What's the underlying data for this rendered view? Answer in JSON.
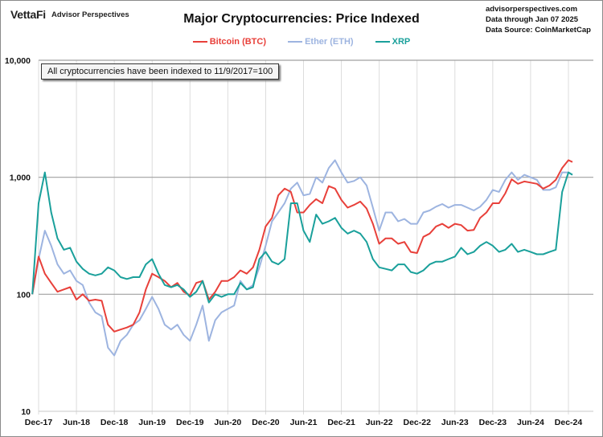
{
  "header": {
    "brand_logo": "VettaFi",
    "brand_sub": "Advisor Perspectives",
    "source_lines": [
      "advisorperspectives.com",
      "Data through Jan 07 2025",
      "Data Source: CoinMarketCap"
    ]
  },
  "annotation": "All cryptocurrencies have been indexed to 11/9/2017=100",
  "chart_data": {
    "type": "line",
    "title": "Major Cryptocurrencies:  Price Indexed",
    "xlabel": "",
    "ylabel": "",
    "yscale": "log",
    "ylim": [
      10,
      10000
    ],
    "y_ticks": [
      10,
      100,
      1000,
      10000
    ],
    "y_tick_labels": [
      "10",
      "100",
      "1,000",
      "10,000"
    ],
    "x_tick_labels": [
      "Dec-17",
      "Jun-18",
      "Dec-18",
      "Jun-19",
      "Dec-19",
      "Jun-20",
      "Dec-20",
      "Jun-21",
      "Dec-21",
      "Jun-22",
      "Dec-22",
      "Jun-23",
      "Dec-23",
      "Jun-24",
      "Dec-24"
    ],
    "grid": true,
    "legend_position": "top-center",
    "x": [
      "Nov-17",
      "Dec-17",
      "Jan-18",
      "Feb-18",
      "Mar-18",
      "Apr-18",
      "May-18",
      "Jun-18",
      "Jul-18",
      "Aug-18",
      "Sep-18",
      "Oct-18",
      "Nov-18",
      "Dec-18",
      "Jan-19",
      "Feb-19",
      "Mar-19",
      "Apr-19",
      "May-19",
      "Jun-19",
      "Jul-19",
      "Aug-19",
      "Sep-19",
      "Oct-19",
      "Nov-19",
      "Dec-19",
      "Jan-20",
      "Feb-20",
      "Mar-20",
      "Apr-20",
      "May-20",
      "Jun-20",
      "Jul-20",
      "Aug-20",
      "Sep-20",
      "Oct-20",
      "Nov-20",
      "Dec-20",
      "Jan-21",
      "Feb-21",
      "Mar-21",
      "Apr-21",
      "May-21",
      "Jun-21",
      "Jul-21",
      "Aug-21",
      "Sep-21",
      "Oct-21",
      "Nov-21",
      "Dec-21",
      "Jan-22",
      "Feb-22",
      "Mar-22",
      "Apr-22",
      "May-22",
      "Jun-22",
      "Jul-22",
      "Aug-22",
      "Sep-22",
      "Oct-22",
      "Nov-22",
      "Dec-22",
      "Jan-23",
      "Feb-23",
      "Mar-23",
      "Apr-23",
      "May-23",
      "Jun-23",
      "Jul-23",
      "Aug-23",
      "Sep-23",
      "Oct-23",
      "Nov-23",
      "Dec-23",
      "Jan-24",
      "Feb-24",
      "Mar-24",
      "Apr-24",
      "May-24",
      "Jun-24",
      "Jul-24",
      "Aug-24",
      "Sep-24",
      "Oct-24",
      "Nov-24",
      "Dec-24",
      "Jan-25"
    ],
    "series": [
      {
        "name": "Bitcoin (BTC)",
        "color": "#e8403a",
        "values": [
          100,
          210,
          150,
          125,
          105,
          110,
          115,
          90,
          100,
          88,
          90,
          88,
          55,
          48,
          50,
          52,
          55,
          70,
          110,
          150,
          140,
          130,
          115,
          125,
          105,
          98,
          125,
          130,
          90,
          105,
          130,
          130,
          140,
          160,
          150,
          170,
          240,
          380,
          450,
          700,
          800,
          750,
          500,
          500,
          580,
          650,
          600,
          840,
          800,
          640,
          550,
          580,
          620,
          540,
          400,
          270,
          300,
          300,
          270,
          280,
          230,
          225,
          310,
          330,
          380,
          400,
          370,
          400,
          390,
          350,
          355,
          450,
          500,
          600,
          600,
          730,
          960,
          880,
          920,
          900,
          880,
          800,
          850,
          950,
          1200,
          1400,
          1350
        ]
      },
      {
        "name": "Ether (ETH)",
        "color": "#9db4e0",
        "values": [
          100,
          200,
          350,
          260,
          180,
          150,
          160,
          130,
          120,
          85,
          70,
          65,
          35,
          30,
          40,
          45,
          55,
          60,
          75,
          95,
          75,
          55,
          50,
          55,
          45,
          40,
          55,
          80,
          40,
          60,
          70,
          75,
          80,
          130,
          110,
          120,
          170,
          260,
          420,
          500,
          600,
          800,
          900,
          700,
          720,
          1000,
          900,
          1200,
          1400,
          1100,
          900,
          930,
          1000,
          850,
          550,
          350,
          500,
          500,
          420,
          440,
          400,
          400,
          500,
          520,
          560,
          590,
          550,
          580,
          580,
          550,
          520,
          560,
          640,
          780,
          750,
          950,
          1100,
          950,
          1050,
          1000,
          950,
          780,
          780,
          820,
          1100,
          1100,
          1050
        ]
      },
      {
        "name": "XRP",
        "color": "#1aa09b",
        "values": [
          100,
          600,
          1100,
          500,
          300,
          240,
          250,
          190,
          165,
          150,
          145,
          150,
          170,
          160,
          140,
          135,
          140,
          140,
          180,
          200,
          150,
          120,
          115,
          120,
          110,
          95,
          105,
          130,
          85,
          100,
          95,
          100,
          100,
          125,
          110,
          115,
          200,
          230,
          190,
          180,
          200,
          600,
          600,
          350,
          280,
          480,
          400,
          420,
          450,
          370,
          330,
          350,
          330,
          280,
          200,
          170,
          165,
          160,
          180,
          180,
          155,
          150,
          160,
          180,
          190,
          190,
          200,
          210,
          250,
          220,
          230,
          260,
          280,
          260,
          230,
          240,
          270,
          230,
          240,
          230,
          220,
          220,
          230,
          240,
          750,
          1100,
          1050
        ]
      }
    ]
  }
}
